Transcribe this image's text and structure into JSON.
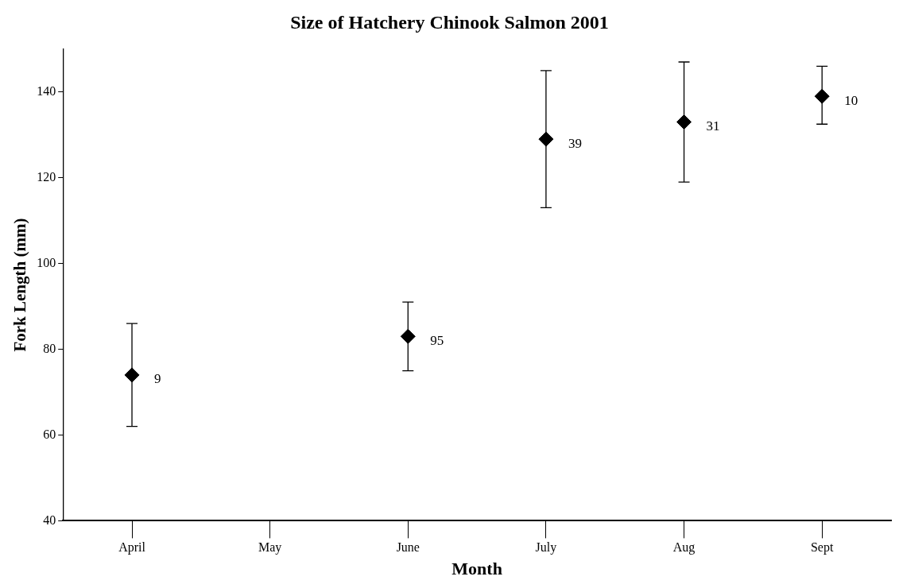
{
  "chart_data": {
    "type": "scatter",
    "title": "Size of Hatchery Chinook Salmon 2001",
    "xlabel": "Month",
    "ylabel": "Fork Length (mm)",
    "categories": [
      "April",
      "May",
      "June",
      "July",
      "Aug",
      "Sept"
    ],
    "values": [
      74,
      null,
      83,
      129,
      133,
      139
    ],
    "errors": [
      [
        62,
        86
      ],
      null,
      [
        75,
        91
      ],
      [
        113,
        145
      ],
      [
        119,
        147
      ],
      [
        132.5,
        146
      ]
    ],
    "annotations": [
      {
        "text": "9",
        "x": "April",
        "y": 74
      },
      {
        "text": "95",
        "x": "June",
        "y": 83
      },
      {
        "text": "39",
        "x": "July",
        "y": 129
      },
      {
        "text": "31",
        "x": "Aug",
        "y": 133
      },
      {
        "text": "10",
        "x": "Sept",
        "y": 139
      }
    ],
    "color": "#000000",
    "marker": "diamond",
    "ylim": [
      40,
      150
    ],
    "yticks": [
      40,
      60,
      80,
      100,
      120,
      140
    ],
    "grid": false,
    "legend": false
  }
}
